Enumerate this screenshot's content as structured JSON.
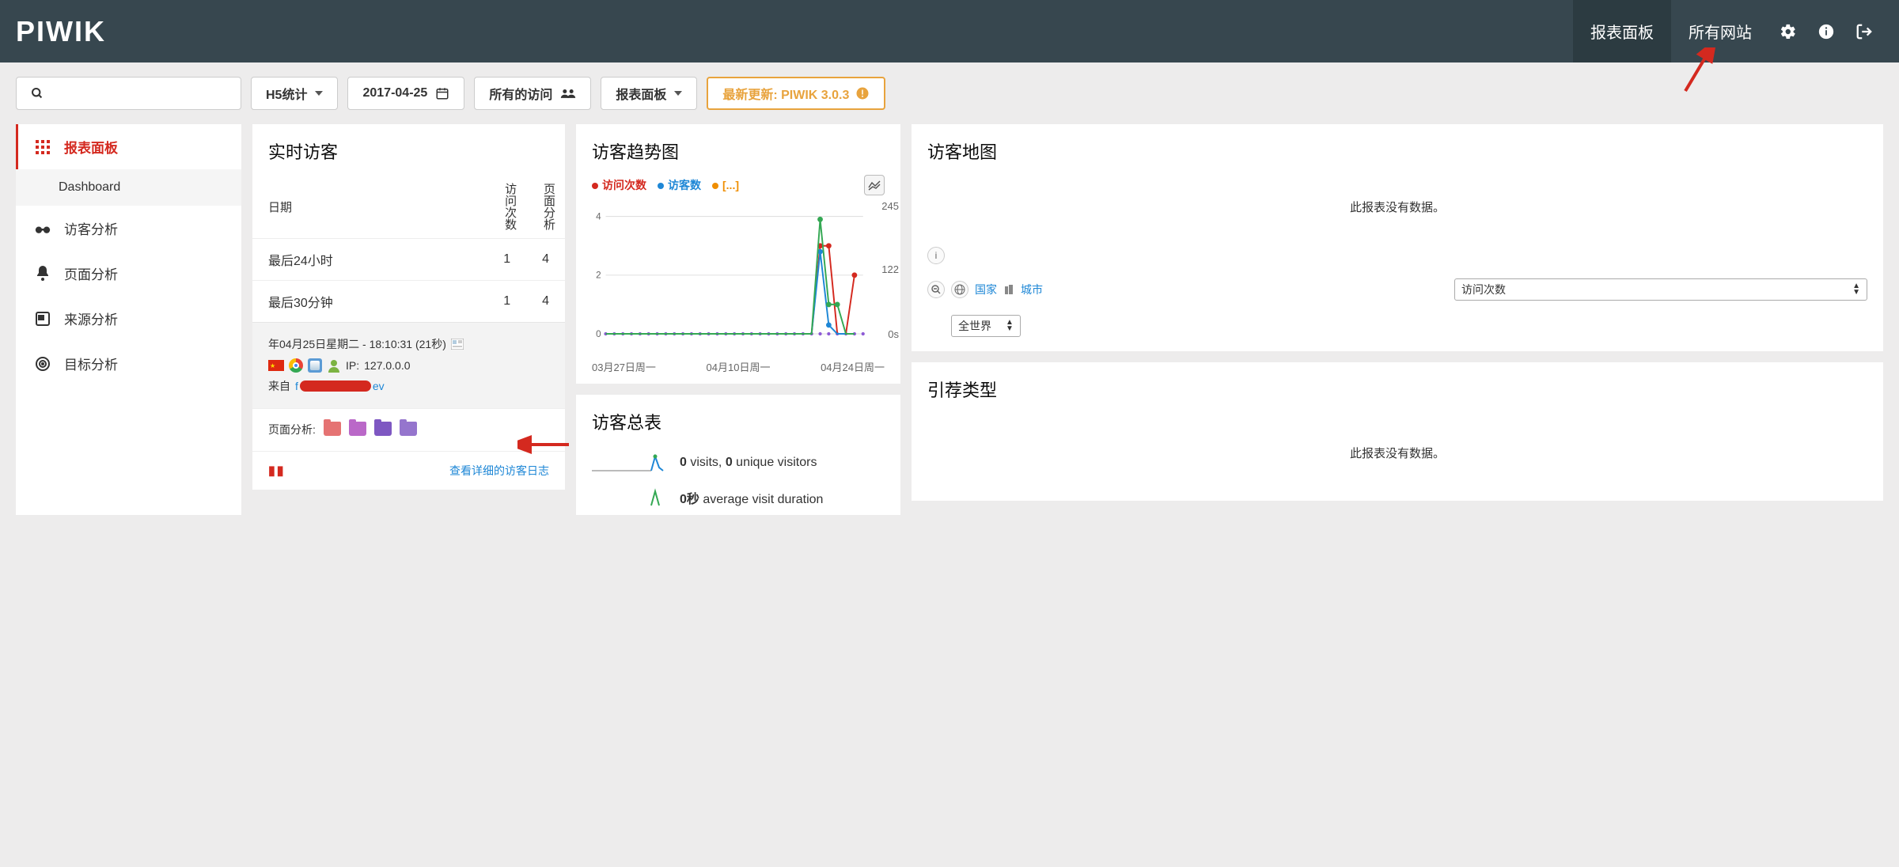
{
  "brand": "PIWIK",
  "topnav": {
    "dashboard": "报表面板",
    "all_sites": "所有网站"
  },
  "toolbar": {
    "site_selector": "H5统计",
    "date": "2017-04-25",
    "segment": "所有的访问",
    "dashboard": "报表面板",
    "update_banner": "最新更新: PIWIK 3.0.3"
  },
  "sidebar": {
    "items": [
      {
        "label": "报表面板",
        "icon": "grid"
      },
      {
        "label": "访客分析",
        "icon": "binoculars"
      },
      {
        "label": "页面分析",
        "icon": "bell"
      },
      {
        "label": "来源分析",
        "icon": "calendar"
      },
      {
        "label": "目标分析",
        "icon": "target"
      }
    ],
    "sub_dashboard": "Dashboard"
  },
  "realtime": {
    "title": "实时访客",
    "col_date": "日期",
    "col_visits": "访问次数",
    "col_pages": "页面分析",
    "rows": [
      {
        "label": "最后24小时",
        "visits": "1",
        "pages": "4"
      },
      {
        "label": "最后30分钟",
        "visits": "1",
        "pages": "4"
      }
    ],
    "detail_time": "年04月25日星期二 - 18:10:31 (21秒)",
    "detail_ip_label": "IP:",
    "detail_ip": "127.0.0.0",
    "detail_from_label": "来自",
    "detail_from_suffix": "ev",
    "pages_label": "页面分析:",
    "folder_colors": [
      "#e57373",
      "#ba68c8",
      "#7e57c2",
      "#9575cd"
    ],
    "footer_link": "查看详细的访客日志"
  },
  "trend": {
    "title": "访客趋势图",
    "legend": [
      {
        "label": "访问次数",
        "color": "#d4291f"
      },
      {
        "label": "访客数",
        "color": "#1e87d6"
      },
      {
        "label": "[...]",
        "color": "#ef8e00"
      }
    ],
    "y_ticks": [
      "4",
      "2",
      "0"
    ],
    "y_right": [
      "245",
      "122",
      "0s"
    ],
    "x_labels": [
      "03月27日周一",
      "04月10日周一",
      "04月24日周一"
    ],
    "chart": {
      "xlim": [
        0,
        30
      ],
      "ylim": [
        0,
        4.2
      ],
      "grid_color": "#dddddd",
      "series": [
        {
          "name": "visits",
          "color": "#d4291f",
          "points": [
            [
              0,
              0
            ],
            [
              1,
              0
            ],
            [
              2,
              0
            ],
            [
              3,
              0
            ],
            [
              4,
              0
            ],
            [
              5,
              0
            ],
            [
              6,
              0
            ],
            [
              7,
              0
            ],
            [
              8,
              0
            ],
            [
              9,
              0
            ],
            [
              10,
              0
            ],
            [
              11,
              0
            ],
            [
              12,
              0
            ],
            [
              13,
              0
            ],
            [
              14,
              0
            ],
            [
              15,
              0
            ],
            [
              16,
              0
            ],
            [
              17,
              0
            ],
            [
              18,
              0
            ],
            [
              19,
              0
            ],
            [
              20,
              0
            ],
            [
              21,
              0
            ],
            [
              22,
              0
            ],
            [
              23,
              0
            ],
            [
              24,
              0
            ],
            [
              25,
              3
            ],
            [
              26,
              3
            ],
            [
              27,
              0
            ],
            [
              28,
              0
            ],
            [
              29,
              2
            ]
          ]
        },
        {
          "name": "visitors",
          "color": "#1e87d6",
          "points": [
            [
              0,
              0
            ],
            [
              1,
              0
            ],
            [
              2,
              0
            ],
            [
              3,
              0
            ],
            [
              4,
              0
            ],
            [
              5,
              0
            ],
            [
              6,
              0
            ],
            [
              7,
              0
            ],
            [
              8,
              0
            ],
            [
              9,
              0
            ],
            [
              10,
              0
            ],
            [
              11,
              0
            ],
            [
              12,
              0
            ],
            [
              13,
              0
            ],
            [
              14,
              0
            ],
            [
              15,
              0
            ],
            [
              16,
              0
            ],
            [
              17,
              0
            ],
            [
              18,
              0
            ],
            [
              19,
              0
            ],
            [
              20,
              0
            ],
            [
              21,
              0
            ],
            [
              22,
              0
            ],
            [
              23,
              0
            ],
            [
              24,
              0
            ],
            [
              25,
              2.8
            ],
            [
              26,
              0.3
            ],
            [
              27,
              0
            ],
            [
              28,
              0
            ],
            [
              29,
              0
            ]
          ]
        },
        {
          "name": "other",
          "color": "#34a853",
          "points": [
            [
              0,
              0
            ],
            [
              1,
              0
            ],
            [
              2,
              0
            ],
            [
              3,
              0
            ],
            [
              4,
              0
            ],
            [
              5,
              0
            ],
            [
              6,
              0
            ],
            [
              7,
              0
            ],
            [
              8,
              0
            ],
            [
              9,
              0
            ],
            [
              10,
              0
            ],
            [
              11,
              0
            ],
            [
              12,
              0
            ],
            [
              13,
              0
            ],
            [
              14,
              0
            ],
            [
              15,
              0
            ],
            [
              16,
              0
            ],
            [
              17,
              0
            ],
            [
              18,
              0
            ],
            [
              19,
              0
            ],
            [
              20,
              0
            ],
            [
              21,
              0
            ],
            [
              22,
              0
            ],
            [
              23,
              0
            ],
            [
              24,
              0
            ],
            [
              25,
              3.9
            ],
            [
              26,
              1
            ],
            [
              27,
              1
            ],
            [
              28,
              0
            ],
            [
              29,
              0
            ]
          ]
        }
      ],
      "baseline_color": "#8e5bd6"
    }
  },
  "map": {
    "title": "访客地图",
    "empty": "此报表没有数据。",
    "link_country": "国家",
    "link_city": "城市",
    "select_region": "全世界",
    "select_metric": "访问次数"
  },
  "referrer": {
    "title": "引荐类型",
    "empty": "此报表没有数据。"
  },
  "summary": {
    "title": "访客总表",
    "rows": [
      {
        "value": "0",
        "text1": "visits,",
        "value2": "0",
        "text2": "unique visitors"
      },
      {
        "value": "0秒",
        "text1": "average visit duration"
      }
    ]
  }
}
